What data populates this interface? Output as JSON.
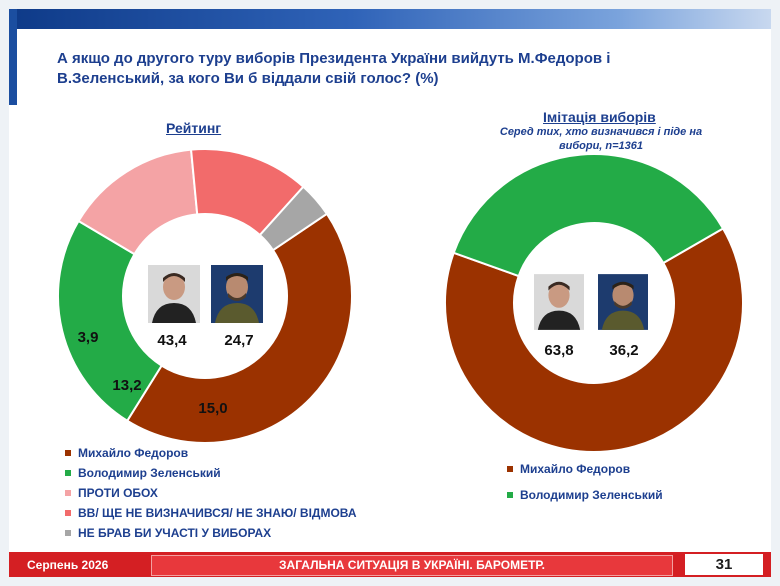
{
  "title": "А якщо до другого туру виборів Президента України вийдуть М.Федоров і В.Зеленський, за кого Ви б віддали свій голос? (%)",
  "colors": {
    "fedorov": "#9b3200",
    "zelensky": "#23ab47",
    "against": "#f4a3a5",
    "undecided": "#f26b6b",
    "abstain": "#a6a6a6"
  },
  "chart_data": [
    {
      "type": "pie",
      "title": "Рейтинг",
      "categories": [
        "Михайло Федоров",
        "Володимир Зеленський",
        "ПРОТИ ОБОХ",
        "ВВ/ ЩЕ НЕ ВИЗНАЧИВСЯ/ НЕ ЗНАЮ/ ВІДМОВА",
        "НЕ БРАВ БИ УЧАСТІ У ВИБОРАХ"
      ],
      "values": [
        43.4,
        24.7,
        15.0,
        13.2,
        3.9
      ],
      "labels": [
        "43,4",
        "24,7",
        "15,0",
        "13,2",
        "3,9"
      ],
      "legend_position": "bottom-left"
    },
    {
      "type": "pie",
      "title": "Імітація виборів",
      "subtitle": "Серед тих, хто визначився і піде на вибори, n=1361",
      "categories": [
        "Михайло Федоров",
        "Володимир Зеленський"
      ],
      "values": [
        63.8,
        36.2
      ],
      "labels": [
        "63,8",
        "36,2"
      ],
      "legend_position": "bottom-left"
    }
  ],
  "footer": {
    "date": "Серпень 2026",
    "center": "ЗАГАЛЬНА СИТУАЦІЯ В УКРАЇНІ. БАРОМЕТР.",
    "page": "31"
  }
}
